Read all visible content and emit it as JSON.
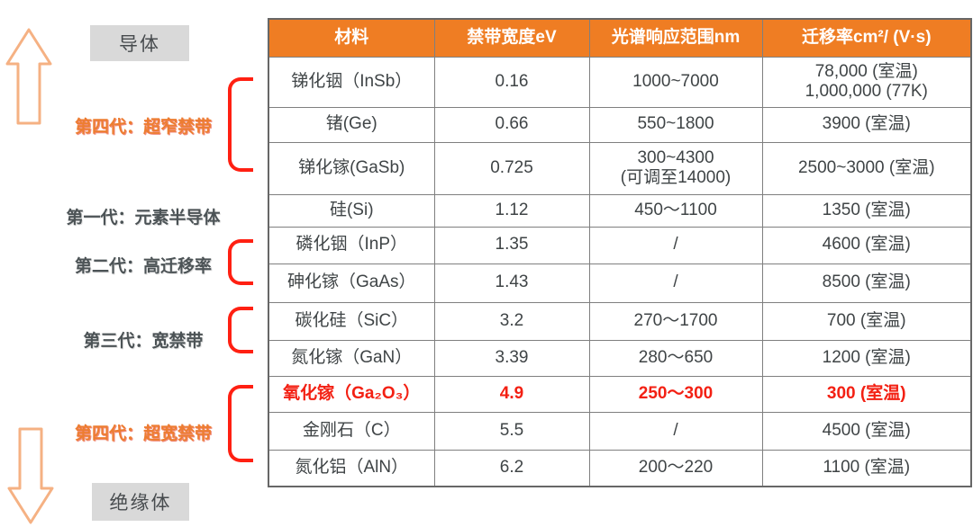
{
  "sidebar": {
    "conductor_label": "导体",
    "insulator_label": "绝缘体",
    "gen4_narrow_label": "第四代：超窄禁带",
    "gen1_label": "第一代：元素半导体",
    "gen2_label": "第二代：高迁移率",
    "gen3_label": "第三代：宽禁带",
    "gen4_wide_label": "第四代：超宽禁带"
  },
  "colors": {
    "header_bg": "#EF7D23",
    "highlight_red": "#F32013",
    "bracket_red": "#FF2012",
    "arrow_orange": "#F5B183",
    "label_gray": "#4C5356",
    "box_gray": "#D9D9D9",
    "accent_orange": "#ED7D31"
  },
  "table": {
    "columns": [
      "材料",
      "禁带宽度eV",
      "光谱响应范围nm",
      "迁移率cm²/ (V·s)"
    ],
    "rows": [
      {
        "material": "锑化铟（InSb）",
        "bandgap": "0.16",
        "spectral": [
          "1000~7000"
        ],
        "mobility": [
          "78,000 (室温)",
          "1,000,000 (77K)"
        ],
        "highlight": false
      },
      {
        "material": "锗(Ge)",
        "bandgap": "0.66",
        "spectral": [
          "550~1800"
        ],
        "mobility": [
          "3900 (室温)"
        ],
        "highlight": false
      },
      {
        "material": "锑化镓(GaSb)",
        "bandgap": "0.725",
        "spectral": [
          "300~4300",
          "(可调至14000)"
        ],
        "mobility": [
          "2500~3000 (室温)"
        ],
        "highlight": false
      },
      {
        "material": "硅(Si)",
        "bandgap": "1.12",
        "spectral": [
          "450～1100"
        ],
        "mobility": [
          "1350 (室温)"
        ],
        "highlight": false
      },
      {
        "material": "磷化铟（InP）",
        "bandgap": "1.35",
        "spectral": [
          "/"
        ],
        "mobility": [
          "4600 (室温)"
        ],
        "highlight": false
      },
      {
        "material": "砷化镓（GaAs）",
        "bandgap": "1.43",
        "spectral": [
          "/"
        ],
        "mobility": [
          "8500 (室温)"
        ],
        "highlight": false
      },
      {
        "material": "碳化硅（SiC）",
        "bandgap": "3.2",
        "spectral": [
          "270～1700"
        ],
        "mobility": [
          "700 (室温)"
        ],
        "highlight": false
      },
      {
        "material": "氮化镓（GaN）",
        "bandgap": "3.39",
        "spectral": [
          "280～650"
        ],
        "mobility": [
          "1200 (室温)"
        ],
        "highlight": false
      },
      {
        "material": "氧化镓（Ga₂O₃）",
        "bandgap": "4.9",
        "spectral": [
          "250～300"
        ],
        "mobility": [
          "300 (室温)"
        ],
        "highlight": true
      },
      {
        "material": "金刚石（C）",
        "bandgap": "5.5",
        "spectral": [
          "/"
        ],
        "mobility": [
          "4500 (室温)"
        ],
        "highlight": false
      },
      {
        "material": "氮化铝（AlN）",
        "bandgap": "6.2",
        "spectral": [
          "200～220"
        ],
        "mobility": [
          "1100 (室温)"
        ],
        "highlight": false
      }
    ]
  }
}
